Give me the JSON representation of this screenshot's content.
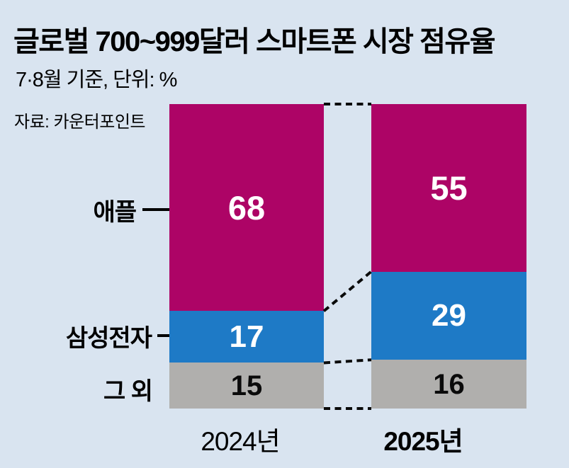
{
  "header": {
    "title": "글로벌 700~999달러 스마트폰 시장 점유율",
    "subtitle": "7·8월 기준, 단위: %",
    "source": "자료: 카운터포인트"
  },
  "chart_data": {
    "type": "bar",
    "subtype": "stacked-vertical-100pct",
    "title": "글로벌 700~999달러 스마트폰 시장 점유율",
    "unit": "%",
    "note": "7·8월 기준",
    "source": "자료: 카운터포인트",
    "categories": [
      "2024년",
      "2025년"
    ],
    "series": [
      {
        "name": "애플",
        "values": [
          68,
          55
        ],
        "color": "#ad0466",
        "label_color": "#ffffff"
      },
      {
        "name": "삼성전자",
        "values": [
          17,
          29
        ],
        "color": "#1e7ac6",
        "label_color": "#ffffff"
      },
      {
        "name": "그 외",
        "values": [
          15,
          16
        ],
        "color": "#b0afad",
        "label_color": "#0a0a0a"
      }
    ],
    "ylim": [
      0,
      100
    ],
    "grid": false,
    "legend_position": "left-labels",
    "connectors": "dashed-black-lines-between-bars"
  },
  "colors": {
    "background": "#d9e4f0",
    "apple": "#ad0466",
    "samsung": "#1e7ac6",
    "others": "#b0afad",
    "connector": "#0a0a0a",
    "text": "#000000"
  }
}
